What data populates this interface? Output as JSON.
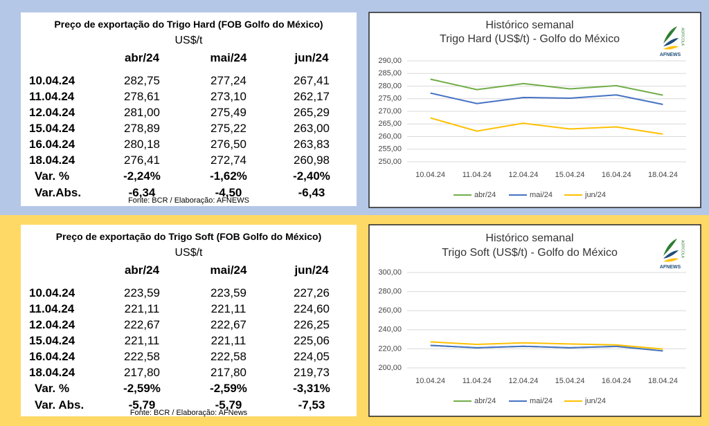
{
  "tables": [
    {
      "title": "Preço de exportação do Trigo Hard (FOB Golfo do México)",
      "unit": "US$/t",
      "columns": [
        "abr/24",
        "mai/24",
        "jun/24"
      ],
      "rows": [
        [
          "10.04.24",
          "282,75",
          "277,24",
          "267,41"
        ],
        [
          "11.04.24",
          "278,61",
          "273,10",
          "262,17"
        ],
        [
          "12.04.24",
          "281,00",
          "275,49",
          "265,29"
        ],
        [
          "15.04.24",
          "278,89",
          "275,22",
          "263,00"
        ],
        [
          "16.04.24",
          "280,18",
          "276,50",
          "263,83"
        ],
        [
          "18.04.24",
          "276,41",
          "272,74",
          "260,98"
        ],
        [
          "Var. %",
          "-2,24%",
          "-1,62%",
          "-2,40%"
        ],
        [
          "Var.Abs.",
          "-6,34",
          "-4,50",
          "-6,43"
        ]
      ],
      "source": "Fonte: BCR / Elaboração: AFNEWS"
    },
    {
      "title": "Preço de exportação do Trigo Soft (FOB Golfo do México)",
      "unit": "US$/t",
      "columns": [
        "abr/24",
        "mai/24",
        "jun/24"
      ],
      "rows": [
        [
          "10.04.24",
          "223,59",
          "223,59",
          "227,26"
        ],
        [
          "11.04.24",
          "221,11",
          "221,11",
          "224,60"
        ],
        [
          "12.04.24",
          "222,67",
          "222,67",
          "226,25"
        ],
        [
          "15.04.24",
          "221,11",
          "221,11",
          "225,06"
        ],
        [
          "16.04.24",
          "222,58",
          "222,58",
          "224,05"
        ],
        [
          "18.04.24",
          "217,80",
          "217,80",
          "219,73"
        ],
        [
          "Var. %",
          "-2,59%",
          "-2,59%",
          "-3,31%"
        ],
        [
          "Var. Abs.",
          "-5,79",
          "-5,79",
          "-7,53"
        ]
      ],
      "source": "Fonte: BCR / Elaboração: AFNews"
    }
  ],
  "logo": {
    "name": "AFNEWS",
    "tag": "AGRÍCOLA"
  },
  "chart_data": [
    {
      "type": "line",
      "title": "Histórico semanal",
      "subtitle": "Trigo Hard (US$/t) - Golfo do México",
      "categories": [
        "10.04.24",
        "11.04.24",
        "12.04.24",
        "15.04.24",
        "16.04.24",
        "18.04.24"
      ],
      "series": [
        {
          "name": "abr/24",
          "color": "#70ad47",
          "values": [
            282.75,
            278.61,
            281.0,
            278.89,
            280.18,
            276.41
          ]
        },
        {
          "name": "mai/24",
          "color": "#4472c4",
          "values": [
            277.24,
            273.1,
            275.49,
            275.22,
            276.5,
            272.74
          ]
        },
        {
          "name": "jun/24",
          "color": "#ffc000",
          "values": [
            267.41,
            262.17,
            265.29,
            263.0,
            263.83,
            260.98
          ]
        }
      ],
      "ylim": [
        250,
        290
      ],
      "yticks": [
        {
          "value": 250,
          "label": "250,00"
        },
        {
          "value": 255,
          "label": "255,00"
        },
        {
          "value": 260,
          "label": "260,00"
        },
        {
          "value": 265,
          "label": "265,00"
        },
        {
          "value": 270,
          "label": "270,00"
        },
        {
          "value": 275,
          "label": "275,00"
        },
        {
          "value": 280,
          "label": "280,00"
        },
        {
          "value": 285,
          "label": "285,00"
        },
        {
          "value": 290,
          "label": "290,00"
        }
      ],
      "grid": true,
      "legend": "bottom"
    },
    {
      "type": "line",
      "title": "Histórico semanal",
      "subtitle": "Trigo Soft (US$/t) - Golfo do México",
      "categories": [
        "10.04.24",
        "11.04.24",
        "12.04.24",
        "15.04.24",
        "16.04.24",
        "18.04.24"
      ],
      "series": [
        {
          "name": "abr/24",
          "color": "#70ad47",
          "values": [
            223.59,
            221.11,
            222.67,
            221.11,
            222.58,
            217.8
          ]
        },
        {
          "name": "mai/24",
          "color": "#4472c4",
          "values": [
            223.59,
            221.11,
            222.67,
            221.11,
            222.58,
            217.8
          ]
        },
        {
          "name": "jun/24",
          "color": "#ffc000",
          "values": [
            227.26,
            224.6,
            226.25,
            225.06,
            224.05,
            219.73
          ]
        }
      ],
      "ylim": [
        200,
        300
      ],
      "yticks": [
        {
          "value": 200,
          "label": "200,00"
        },
        {
          "value": 220,
          "label": "220,00"
        },
        {
          "value": 240,
          "label": "240,00"
        },
        {
          "value": 260,
          "label": "260,00"
        },
        {
          "value": 280,
          "label": "280,00"
        },
        {
          "value": 300,
          "label": "300,00"
        }
      ],
      "grid": true,
      "legend": "bottom"
    }
  ]
}
